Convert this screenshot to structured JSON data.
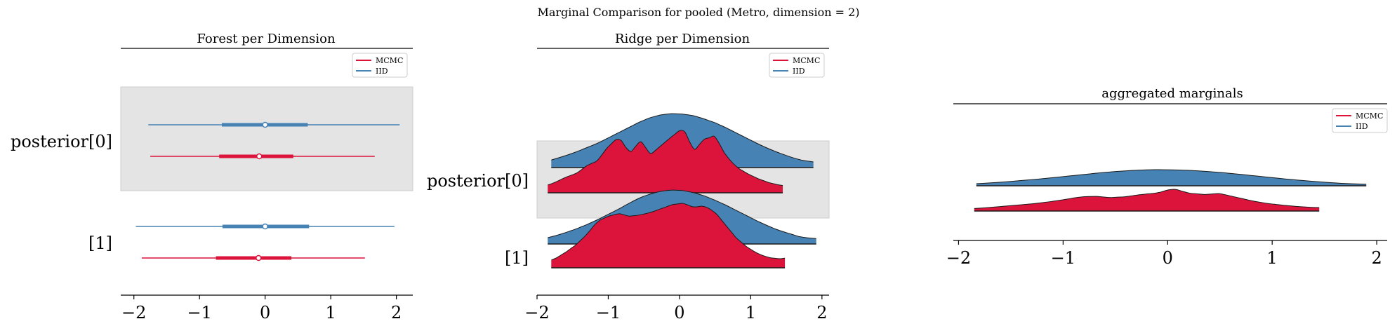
{
  "figure_title": "Marginal Comparison for pooled (Metro, dimension = 2)",
  "colors": {
    "mcmc": "#dc143c",
    "iid": "#4682b4",
    "band": "#e4e4e4",
    "axis": "#000000"
  },
  "chart_data": [
    {
      "type": "forest",
      "title": "Forest per Dimension",
      "xlim": [
        -2.2,
        2.25
      ],
      "xticks": [
        -2,
        -1,
        0,
        1,
        2
      ],
      "xtick_labels": [
        "−2",
        "−1",
        "0",
        "1",
        "2"
      ],
      "row_labels": [
        "posterior[0]",
        "[1]"
      ],
      "shaded_rows": [
        0
      ],
      "legend": {
        "position": "upper right",
        "entries": [
          "MCMC",
          "IID"
        ]
      },
      "series": [
        {
          "name": "IID",
          "rows": [
            {
              "hdi": [
                -1.78,
                2.05
              ],
              "iqr": [
                -0.66,
                0.65
              ],
              "center": 0.0
            },
            {
              "hdi": [
                -1.97,
                1.97
              ],
              "iqr": [
                -0.65,
                0.67
              ],
              "center": 0.0
            }
          ]
        },
        {
          "name": "MCMC",
          "rows": [
            {
              "hdi": [
                -1.75,
                1.67
              ],
              "iqr": [
                -0.7,
                0.43
              ],
              "center": -0.09
            },
            {
              "hdi": [
                -1.88,
                1.52
              ],
              "iqr": [
                -0.75,
                0.4
              ],
              "center": -0.1
            }
          ]
        }
      ]
    },
    {
      "type": "ridgeline",
      "title": "Ridge per Dimension",
      "xlim": [
        -2.0,
        2.1
      ],
      "xticks": [
        -2,
        -1,
        0,
        1,
        2
      ],
      "xtick_labels": [
        "−2",
        "−1",
        "0",
        "1",
        "2"
      ],
      "row_labels": [
        "posterior[0]",
        "[1]"
      ],
      "shaded_rows": [
        0
      ],
      "legend": {
        "position": "upper right",
        "entries": [
          "MCMC",
          "IID"
        ]
      },
      "x": [
        -1.9,
        -1.75,
        -1.6,
        -1.45,
        -1.3,
        -1.15,
        -1.0,
        -0.85,
        -0.7,
        -0.55,
        -0.4,
        -0.25,
        -0.1,
        0.05,
        0.2,
        0.35,
        0.5,
        0.65,
        0.8,
        0.95,
        1.1,
        1.25,
        1.4,
        1.55,
        1.7,
        1.9
      ],
      "series": [
        {
          "name": "IID",
          "rows": [
            {
              "range": [
                -1.8,
                1.88
              ],
              "density": [
                0.1,
                0.16,
                0.22,
                0.29,
                0.37,
                0.45,
                0.55,
                0.65,
                0.75,
                0.85,
                0.93,
                0.98,
                1.0,
                0.99,
                0.96,
                0.9,
                0.83,
                0.74,
                0.64,
                0.54,
                0.44,
                0.35,
                0.27,
                0.2,
                0.14,
                0.1
              ]
            },
            {
              "range": [
                -1.85,
                1.92
              ],
              "density": [
                0.1,
                0.15,
                0.21,
                0.28,
                0.36,
                0.45,
                0.55,
                0.65,
                0.76,
                0.86,
                0.93,
                0.98,
                1.0,
                0.99,
                0.95,
                0.89,
                0.81,
                0.72,
                0.62,
                0.52,
                0.42,
                0.33,
                0.25,
                0.19,
                0.13,
                0.1
              ]
            }
          ]
        },
        {
          "name": "MCMC",
          "rows": [
            {
              "range": [
                -1.85,
                1.45
              ],
              "density": [
                0.1,
                0.16,
                0.24,
                0.3,
                0.42,
                0.5,
                0.72,
                0.86,
                0.62,
                0.8,
                0.6,
                0.74,
                0.88,
                1.0,
                0.66,
                0.83,
                0.88,
                0.58,
                0.4,
                0.3,
                0.22,
                0.16,
                0.12,
                0.1,
                0.1,
                0.1
              ]
            },
            {
              "range": [
                -1.8,
                1.48
              ],
              "density": [
                0.08,
                0.14,
                0.24,
                0.36,
                0.52,
                0.72,
                0.8,
                0.84,
                0.8,
                0.82,
                0.86,
                0.92,
                0.98,
                1.0,
                0.94,
                0.96,
                0.86,
                0.66,
                0.46,
                0.32,
                0.22,
                0.16,
                0.14,
                0.16,
                0.1,
                0.1
              ]
            }
          ]
        }
      ]
    },
    {
      "type": "ridgeline",
      "title": "aggregated marginals",
      "xlim": [
        -2.05,
        2.1
      ],
      "xticks": [
        -2,
        -1,
        0,
        1,
        2
      ],
      "xtick_labels": [
        "−2",
        "−1",
        "0",
        "1",
        "2"
      ],
      "row_labels": [],
      "legend": {
        "position": "upper right",
        "entries": [
          "MCMC",
          "IID"
        ]
      },
      "x": [
        -1.9,
        -1.75,
        -1.6,
        -1.45,
        -1.3,
        -1.15,
        -1.0,
        -0.85,
        -0.7,
        -0.55,
        -0.4,
        -0.25,
        -0.1,
        0.05,
        0.2,
        0.35,
        0.5,
        0.65,
        0.8,
        0.95,
        1.1,
        1.25,
        1.4,
        1.55,
        1.7,
        1.9
      ],
      "series": [
        {
          "name": "IID",
          "rows": [
            {
              "range": [
                -1.83,
                1.9
              ],
              "density": [
                0.1,
                0.16,
                0.22,
                0.3,
                0.38,
                0.47,
                0.57,
                0.67,
                0.77,
                0.86,
                0.93,
                0.98,
                1.0,
                0.99,
                0.96,
                0.9,
                0.83,
                0.74,
                0.64,
                0.54,
                0.44,
                0.35,
                0.27,
                0.2,
                0.14,
                0.1
              ]
            }
          ]
        },
        {
          "name": "MCMC",
          "rows": [
            {
              "range": [
                -1.85,
                1.45
              ],
              "density": [
                0.1,
                0.14,
                0.2,
                0.26,
                0.32,
                0.4,
                0.5,
                0.62,
                0.66,
                0.6,
                0.64,
                0.74,
                0.8,
                1.0,
                0.8,
                0.74,
                0.78,
                0.62,
                0.46,
                0.34,
                0.26,
                0.2,
                0.16,
                0.14,
                0.12,
                0.1
              ]
            }
          ]
        }
      ]
    }
  ]
}
